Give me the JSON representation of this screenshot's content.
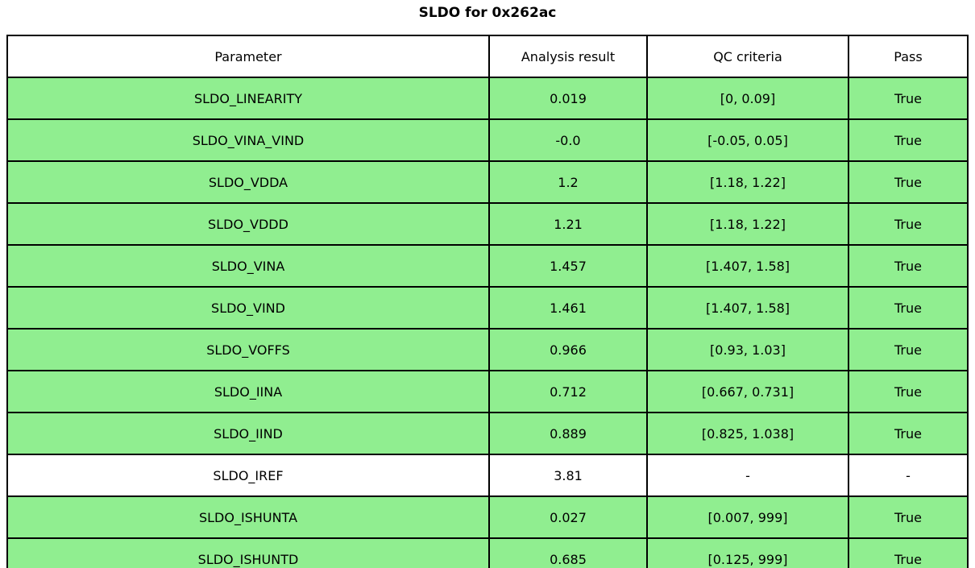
{
  "title": "SLDO for 0x262ac",
  "colors": {
    "pass_row_bg": "#90EE90",
    "neutral_row_bg": "#FFFFFF",
    "border": "#000000",
    "text": "#000000"
  },
  "chart_data": {
    "type": "table",
    "title": "SLDO for 0x262ac",
    "columns": [
      "Parameter",
      "Analysis result",
      "QC criteria",
      "Pass"
    ],
    "rows": [
      {
        "parameter": "SLDO_LINEARITY",
        "result": "0.019",
        "criteria": "[0, 0.09]",
        "pass": "True",
        "highlight": true
      },
      {
        "parameter": "SLDO_VINA_VIND",
        "result": "-0.0",
        "criteria": "[-0.05, 0.05]",
        "pass": "True",
        "highlight": true
      },
      {
        "parameter": "SLDO_VDDA",
        "result": "1.2",
        "criteria": "[1.18, 1.22]",
        "pass": "True",
        "highlight": true
      },
      {
        "parameter": "SLDO_VDDD",
        "result": "1.21",
        "criteria": "[1.18, 1.22]",
        "pass": "True",
        "highlight": true
      },
      {
        "parameter": "SLDO_VINA",
        "result": "1.457",
        "criteria": "[1.407, 1.58]",
        "pass": "True",
        "highlight": true
      },
      {
        "parameter": "SLDO_VIND",
        "result": "1.461",
        "criteria": "[1.407, 1.58]",
        "pass": "True",
        "highlight": true
      },
      {
        "parameter": "SLDO_VOFFS",
        "result": "0.966",
        "criteria": "[0.93, 1.03]",
        "pass": "True",
        "highlight": true
      },
      {
        "parameter": "SLDO_IINA",
        "result": "0.712",
        "criteria": "[0.667, 0.731]",
        "pass": "True",
        "highlight": true
      },
      {
        "parameter": "SLDO_IIND",
        "result": "0.889",
        "criteria": "[0.825, 1.038]",
        "pass": "True",
        "highlight": true
      },
      {
        "parameter": "SLDO_IREF",
        "result": "3.81",
        "criteria": "-",
        "pass": "-",
        "highlight": false
      },
      {
        "parameter": "SLDO_ISHUNTA",
        "result": "0.027",
        "criteria": "[0.007, 999]",
        "pass": "True",
        "highlight": true
      },
      {
        "parameter": "SLDO_ISHUNTD",
        "result": "0.685",
        "criteria": "[0.125, 999]",
        "pass": "True",
        "highlight": true
      }
    ]
  }
}
